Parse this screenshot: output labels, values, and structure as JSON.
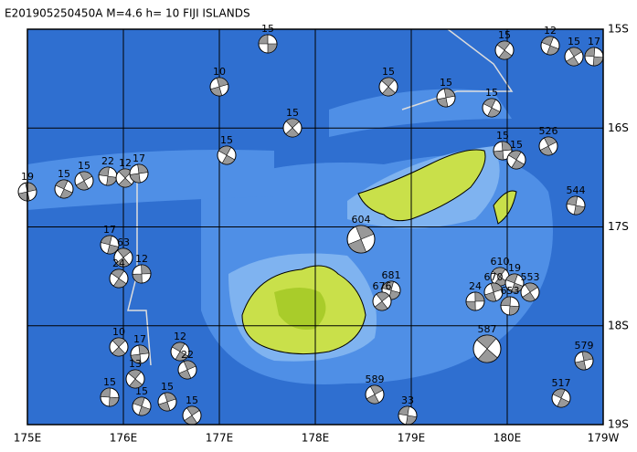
{
  "header": {
    "title": "E201905250450A M=4.6 h= 10 FIJI ISLANDS"
  },
  "longitude_labels": [
    "175E",
    "176E",
    "177E",
    "178E",
    "179E",
    "180E",
    "179W"
  ],
  "latitude_labels": [
    "15S",
    "16S",
    "17S",
    "18S",
    "19S"
  ],
  "mechanisms": [
    "15",
    "15",
    "10",
    "12",
    "15",
    "17",
    "15",
    "15",
    "15",
    "526",
    "544",
    "15",
    "15",
    "15",
    "604",
    "681",
    "676",
    "24",
    "610",
    "670",
    "19",
    "553",
    "653",
    "587",
    "579",
    "517",
    "589",
    "33",
    "10",
    "17",
    "12",
    "22",
    "17",
    "63",
    "12",
    "24",
    "15",
    "15",
    "15",
    "15",
    "13",
    "19",
    "15",
    "15",
    "22",
    "12",
    "17",
    "15"
  ]
}
